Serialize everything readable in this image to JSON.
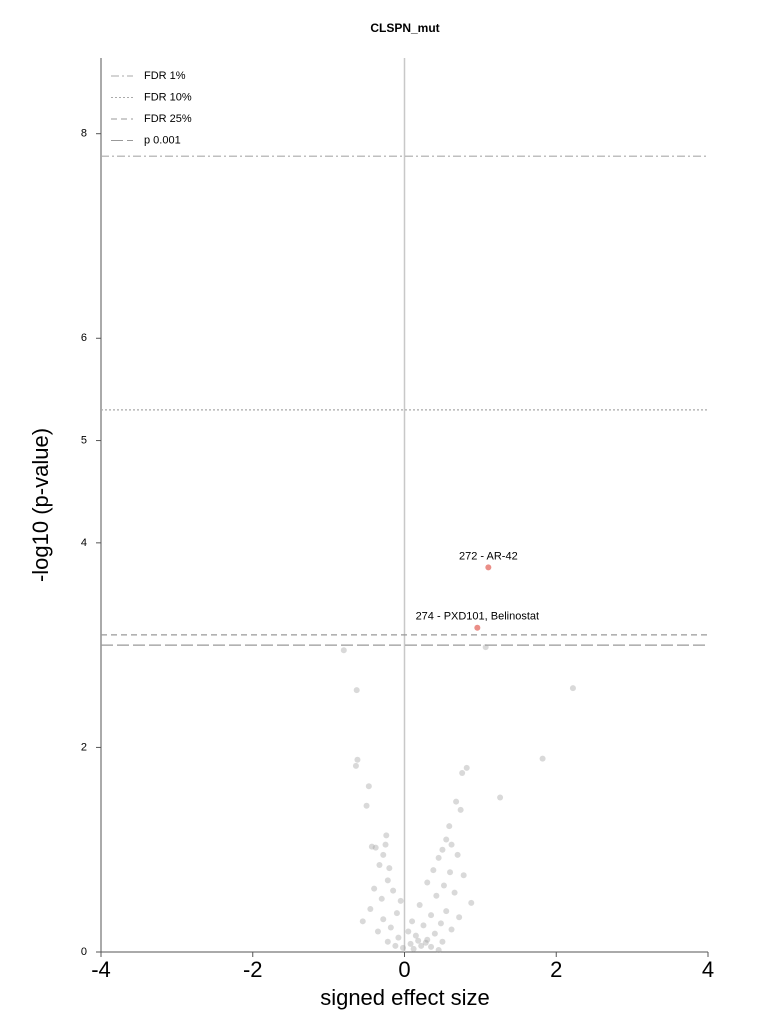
{
  "chart_data": {
    "type": "scatter",
    "title": "CLSPN_mut",
    "xlabel": "signed effect size",
    "ylabel": "-log10 (p-value)",
    "xlim": [
      -4,
      4
    ],
    "ylim": [
      0,
      8.74
    ],
    "xticks": [
      -4,
      -2,
      0,
      2,
      4
    ],
    "yticks": [
      0,
      2,
      4,
      5,
      6,
      8
    ],
    "vline": 0,
    "legend": "upper left",
    "hlines": [
      {
        "label": "FDR 1%",
        "value": 7.78,
        "dash": "8 3 2 3",
        "color": "#aaaaaa"
      },
      {
        "label": "FDR 10%",
        "value": 5.3,
        "dash": "2 2",
        "color": "#aaaaaa"
      },
      {
        "label": "FDR 25%",
        "value": 3.1,
        "dash": "6 4",
        "color": "#999999"
      },
      {
        "label": "p 0.001",
        "value": 3.0,
        "dash": "12 4",
        "color": "#999999"
      }
    ],
    "series": [
      {
        "color": "#a0a0a0",
        "x": [
          -0.8,
          -0.63,
          1.07,
          2.22,
          1.82,
          -0.62,
          -0.64,
          -0.47,
          -0.5,
          0.82,
          0.76,
          1.26,
          0.68,
          0.74,
          0.59,
          -0.24,
          -0.43,
          -0.38,
          0.55,
          0.62,
          0.5,
          -0.25,
          -0.28,
          0.7,
          0.45,
          -0.33,
          -0.2,
          0.38,
          0.6,
          0.78,
          -0.22,
          0.3,
          0.52,
          -0.4,
          -0.15,
          0.66,
          0.42,
          -0.3,
          -0.05,
          0.88,
          0.2,
          -0.45,
          0.55,
          -0.1,
          0.35,
          0.72,
          -0.28,
          0.1,
          -0.55,
          0.48,
          0.25,
          -0.18,
          0.62,
          0.05,
          -0.35,
          0.4,
          0.15,
          -0.08,
          0.3,
          0.5,
          -0.22,
          0.08,
          0.22,
          0.35,
          -0.02,
          0.12,
          0.45,
          0.28,
          0.18,
          -0.12
        ],
        "y": [
          2.95,
          2.56,
          2.98,
          2.58,
          1.89,
          1.88,
          1.82,
          1.62,
          1.43,
          1.8,
          1.75,
          1.51,
          1.47,
          1.39,
          1.23,
          1.14,
          1.03,
          1.02,
          1.1,
          1.05,
          1.0,
          1.05,
          0.95,
          0.95,
          0.92,
          0.85,
          0.82,
          0.8,
          0.78,
          0.75,
          0.7,
          0.68,
          0.65,
          0.62,
          0.6,
          0.58,
          0.55,
          0.52,
          0.5,
          0.48,
          0.46,
          0.42,
          0.4,
          0.38,
          0.36,
          0.34,
          0.32,
          0.3,
          0.3,
          0.28,
          0.26,
          0.24,
          0.22,
          0.2,
          0.2,
          0.18,
          0.16,
          0.14,
          0.12,
          0.1,
          0.1,
          0.08,
          0.06,
          0.05,
          0.04,
          0.03,
          0.02,
          0.09,
          0.11,
          0.06
        ]
      },
      {
        "color": "#e8827a",
        "x": [
          1.105,
          0.96
        ],
        "y": [
          3.76,
          3.17
        ],
        "labels": [
          "272 - AR-42",
          "274 - PXD101, Belinostat"
        ]
      }
    ]
  }
}
